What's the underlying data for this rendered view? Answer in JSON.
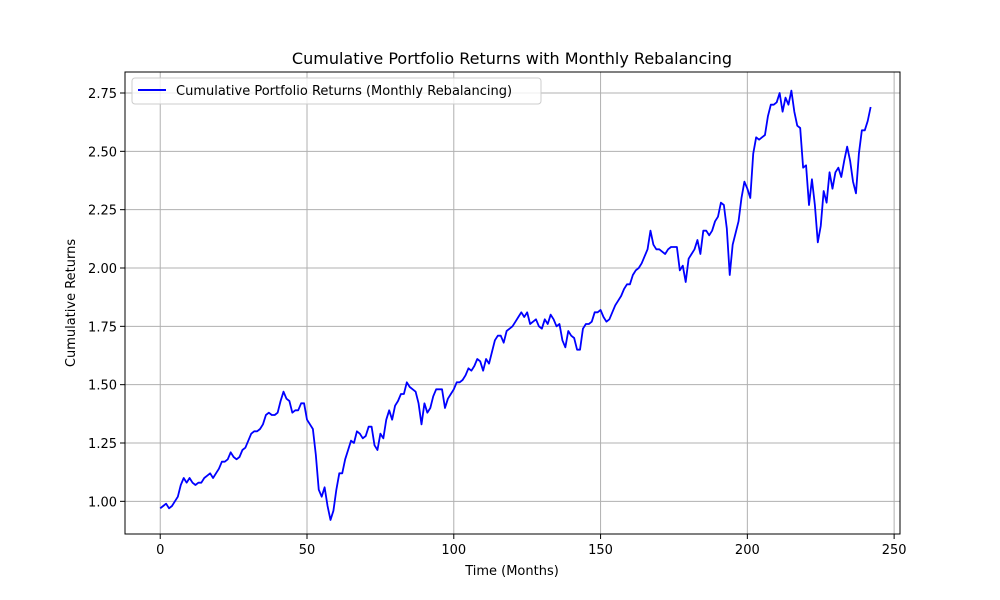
{
  "chart_data": {
    "type": "line",
    "title": "Cumulative Portfolio Returns with Monthly Rebalancing",
    "xlabel": "Time (Months)",
    "ylabel": "Cumulative Returns",
    "xlim": [
      -12,
      252
    ],
    "ylim": [
      0.86,
      2.84
    ],
    "x_ticks": [
      0,
      50,
      100,
      150,
      200,
      250
    ],
    "x_tick_labels": [
      "0",
      "50",
      "100",
      "150",
      "200",
      "250"
    ],
    "y_ticks": [
      1.0,
      1.25,
      1.5,
      1.75,
      2.0,
      2.25,
      2.5,
      2.75
    ],
    "y_tick_labels": [
      "1.00",
      "1.25",
      "1.50",
      "1.75",
      "2.00",
      "2.25",
      "2.50",
      "2.75"
    ],
    "grid": true,
    "legend_position": "top-left",
    "series": [
      {
        "name": "Cumulative Portfolio Returns (Monthly Rebalancing)",
        "color": "#0000ff",
        "x_start": 0,
        "x_step": 1,
        "values": [
          0.97,
          0.98,
          0.99,
          0.97,
          0.98,
          1.0,
          1.02,
          1.07,
          1.1,
          1.08,
          1.1,
          1.08,
          1.07,
          1.08,
          1.08,
          1.1,
          1.11,
          1.12,
          1.1,
          1.12,
          1.14,
          1.17,
          1.17,
          1.18,
          1.21,
          1.19,
          1.18,
          1.19,
          1.22,
          1.23,
          1.26,
          1.29,
          1.3,
          1.3,
          1.31,
          1.33,
          1.37,
          1.38,
          1.37,
          1.37,
          1.38,
          1.43,
          1.47,
          1.44,
          1.43,
          1.38,
          1.39,
          1.39,
          1.42,
          1.42,
          1.35,
          1.33,
          1.31,
          1.2,
          1.05,
          1.02,
          1.06,
          0.98,
          0.92,
          0.96,
          1.05,
          1.12,
          1.12,
          1.18,
          1.22,
          1.26,
          1.25,
          1.3,
          1.29,
          1.27,
          1.28,
          1.32,
          1.32,
          1.24,
          1.22,
          1.29,
          1.27,
          1.35,
          1.39,
          1.35,
          1.41,
          1.43,
          1.46,
          1.46,
          1.51,
          1.49,
          1.48,
          1.47,
          1.42,
          1.33,
          1.42,
          1.38,
          1.4,
          1.45,
          1.48,
          1.48,
          1.48,
          1.4,
          1.44,
          1.46,
          1.48,
          1.51,
          1.51,
          1.52,
          1.54,
          1.57,
          1.56,
          1.58,
          1.61,
          1.6,
          1.56,
          1.61,
          1.59,
          1.64,
          1.69,
          1.71,
          1.71,
          1.68,
          1.73,
          1.74,
          1.75,
          1.77,
          1.79,
          1.81,
          1.79,
          1.81,
          1.76,
          1.77,
          1.78,
          1.75,
          1.74,
          1.78,
          1.76,
          1.8,
          1.78,
          1.75,
          1.76,
          1.69,
          1.66,
          1.73,
          1.71,
          1.7,
          1.65,
          1.65,
          1.74,
          1.76,
          1.76,
          1.77,
          1.81,
          1.81,
          1.82,
          1.79,
          1.77,
          1.78,
          1.81,
          1.84,
          1.86,
          1.88,
          1.91,
          1.93,
          1.93,
          1.97,
          1.99,
          2.0,
          2.02,
          2.05,
          2.08,
          2.16,
          2.1,
          2.08,
          2.08,
          2.07,
          2.06,
          2.08,
          2.09,
          2.09,
          2.09,
          1.99,
          2.01,
          1.94,
          2.04,
          2.06,
          2.08,
          2.12,
          2.06,
          2.16,
          2.16,
          2.14,
          2.16,
          2.2,
          2.22,
          2.28,
          2.27,
          2.17,
          1.97,
          2.1,
          2.15,
          2.2,
          2.3,
          2.37,
          2.34,
          2.3,
          2.49,
          2.56,
          2.55,
          2.56,
          2.57,
          2.65,
          2.7,
          2.7,
          2.71,
          2.75,
          2.67,
          2.73,
          2.7,
          2.76,
          2.67,
          2.61,
          2.6,
          2.43,
          2.44,
          2.27,
          2.38,
          2.27,
          2.11,
          2.18,
          2.33,
          2.28,
          2.41,
          2.34,
          2.41,
          2.43,
          2.39,
          2.46,
          2.52,
          2.46,
          2.37,
          2.32,
          2.49,
          2.59,
          2.59,
          2.63,
          2.69
        ]
      }
    ]
  }
}
